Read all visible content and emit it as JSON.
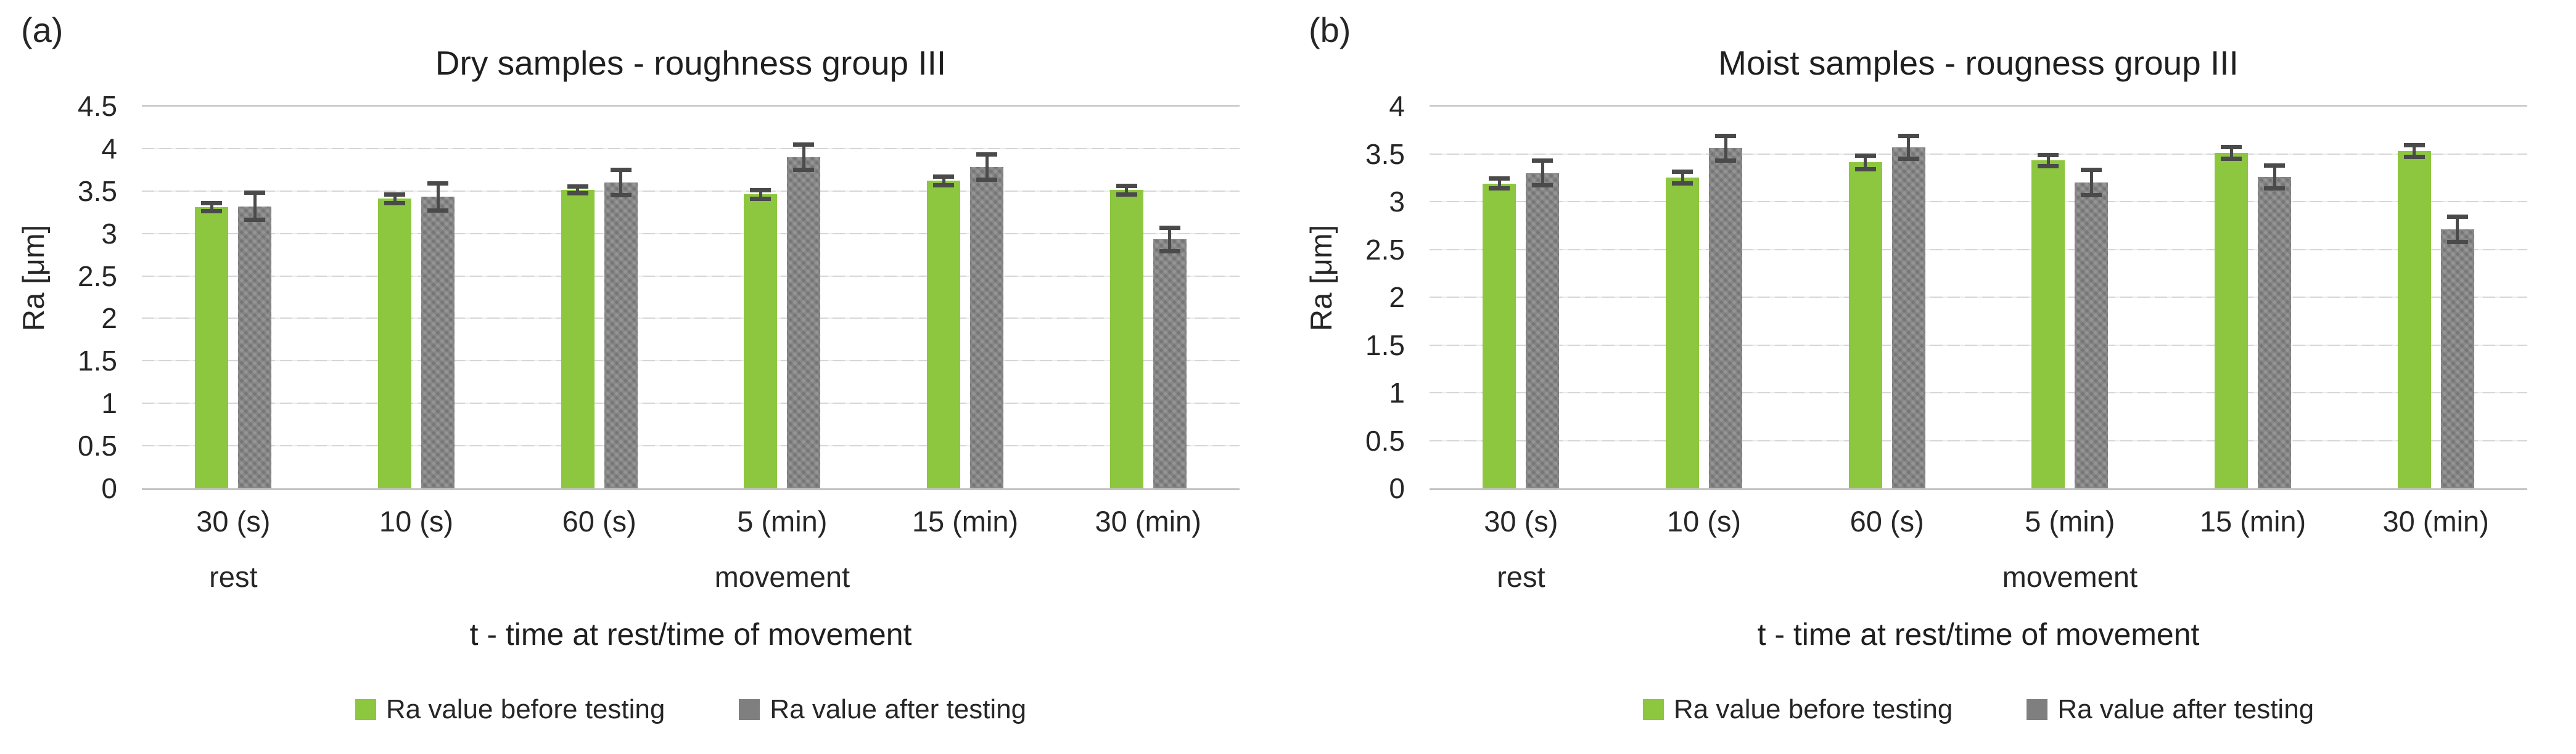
{
  "figure": {
    "background": "#ffffff",
    "panel_labels": [
      "(a)",
      "(b)"
    ]
  },
  "colors": {
    "before_bar": "#8dc63f",
    "after_bar": "#7f7f7f",
    "error_bar": "#4a4a4a",
    "gridline": "#d6d6d6",
    "axis_line": "#c3c3c3",
    "text": "#262626"
  },
  "chart_data": [
    {
      "type": "bar",
      "panel_label": "(a)",
      "title": "Dry samples - roughness group III",
      "xlabel": "t - time at rest/time of movement",
      "ylabel": "Ra [μm]",
      "ylim": [
        0,
        4.5
      ],
      "ytick_step": 0.5,
      "grid": true,
      "legend_position": "bottom",
      "categories": [
        "30 (s)",
        "10 (s)",
        "60 (s)",
        "5 (min)",
        "15 (min)",
        "30 (min)"
      ],
      "category_groups": [
        {
          "label": "rest",
          "from": 0,
          "to": 0
        },
        {
          "label": "movement",
          "from": 1,
          "to": 5
        }
      ],
      "series": [
        {
          "name": "Ra value before testing",
          "color": "#8dc63f",
          "values": [
            3.31,
            3.41,
            3.51,
            3.46,
            3.62,
            3.51
          ],
          "errors": [
            0.05,
            0.05,
            0.04,
            0.05,
            0.05,
            0.05
          ]
        },
        {
          "name": "Ra value after testing",
          "color": "#7f7f7f",
          "values": [
            3.32,
            3.43,
            3.6,
            3.9,
            3.78,
            2.93
          ],
          "errors": [
            0.16,
            0.16,
            0.15,
            0.15,
            0.15,
            0.14
          ]
        }
      ]
    },
    {
      "type": "bar",
      "panel_label": "(b)",
      "title": "Moist samples - rougness group III",
      "xlabel": "t - time at rest/time of movement",
      "ylabel": "Ra [μm]",
      "ylim": [
        0,
        4
      ],
      "ytick_step": 0.5,
      "grid": true,
      "legend_position": "bottom",
      "categories": [
        "30 (s)",
        "10 (s)",
        "60 (s)",
        "5 (min)",
        "15 (min)",
        "30 (min)"
      ],
      "category_groups": [
        {
          "label": "rest",
          "from": 0,
          "to": 0
        },
        {
          "label": "movement",
          "from": 1,
          "to": 5
        }
      ],
      "series": [
        {
          "name": "Ra value before testing",
          "color": "#8dc63f",
          "values": [
            3.19,
            3.25,
            3.41,
            3.43,
            3.51,
            3.53
          ],
          "errors": [
            0.05,
            0.06,
            0.07,
            0.06,
            0.06,
            0.06
          ]
        },
        {
          "name": "Ra value after testing",
          "color": "#7f7f7f",
          "values": [
            3.3,
            3.56,
            3.57,
            3.2,
            3.26,
            2.71
          ],
          "errors": [
            0.13,
            0.13,
            0.12,
            0.13,
            0.12,
            0.13
          ]
        }
      ]
    }
  ]
}
